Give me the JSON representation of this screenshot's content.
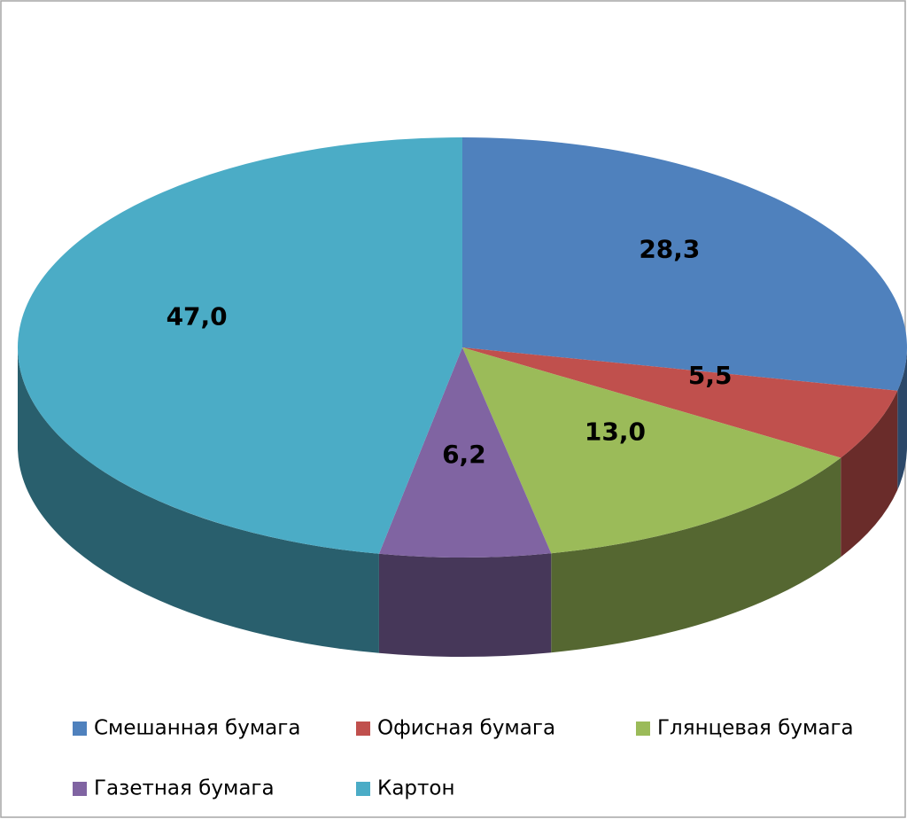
{
  "chart_data": {
    "type": "pie3d",
    "categories": [
      "Смешанная бумага",
      "Офисная бумага",
      "Глянцевая бумага",
      "Газетная бумага",
      "Картон"
    ],
    "values": [
      28.3,
      5.5,
      13.0,
      6.2,
      47.0
    ],
    "value_labels": [
      "28,3",
      "5,5",
      "13,0",
      "6,2",
      "47,0"
    ],
    "colors": [
      "#4f81bd",
      "#c0504d",
      "#9bbb59",
      "#8064a2",
      "#4bacc6"
    ],
    "legend": "bottom"
  }
}
